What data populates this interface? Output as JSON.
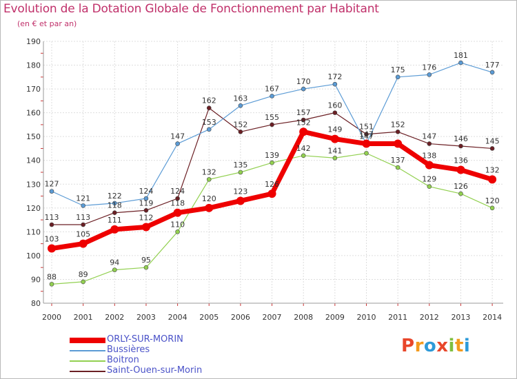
{
  "title": "Evolution de la Dotation Globale de Fonctionnement par Habitant",
  "subtitle": "(en € et par an)",
  "logo": {
    "text": "Proxiti",
    "letters": [
      {
        "ch": "P",
        "color": "#e8462a"
      },
      {
        "ch": "r",
        "color": "#f39a1c"
      },
      {
        "ch": "o",
        "color": "#2e9ad8"
      },
      {
        "ch": "x",
        "color": "#e8462a"
      },
      {
        "ch": "i",
        "color": "#7fbf3f"
      },
      {
        "ch": "t",
        "color": "#f39a1c"
      },
      {
        "ch": "i",
        "color": "#2e9ad8"
      }
    ]
  },
  "chart_data": {
    "type": "line",
    "title": "Evolution de la Dotation Globale de Fonctionnement par Habitant",
    "subtitle": "(en € et par an)",
    "xlabel": "",
    "ylabel": "",
    "x": [
      "2000",
      "2001",
      "2002",
      "2003",
      "2004",
      "2005",
      "2006",
      "2007",
      "2008",
      "2009",
      "2010",
      "2011",
      "2012",
      "2013",
      "2014"
    ],
    "ylim": [
      80,
      190
    ],
    "yticks": [
      "80",
      "90",
      "100",
      "110",
      "120",
      "130",
      "140",
      "150",
      "160",
      "170",
      "180",
      "190"
    ],
    "grid": true,
    "legend_position": "bottom-left",
    "series": [
      {
        "name": "ORLY-SUR-MORIN",
        "color": "#ee0000",
        "values": [
          103,
          105,
          111,
          112,
          118,
          120,
          123,
          126,
          152,
          149,
          147,
          147,
          138,
          136,
          132
        ],
        "labels": [
          "103",
          "105",
          "111",
          "112",
          "118",
          "120",
          "123",
          "126",
          "152",
          "149",
          "147",
          "",
          "138",
          "136",
          "132"
        ]
      },
      {
        "name": "Bussières",
        "color": "#5b9bd5",
        "values": [
          127,
          121,
          122,
          124,
          147,
          153,
          163,
          167,
          170,
          172,
          147,
          175,
          176,
          181,
          177
        ],
        "labels": [
          "127",
          "121",
          "122",
          "124",
          "147",
          "153",
          "163",
          "167",
          "170",
          "172",
          "147",
          "175",
          "176",
          "181",
          "177"
        ]
      },
      {
        "name": "Boitron",
        "color": "#92d050",
        "values": [
          88,
          89,
          94,
          95,
          110,
          132,
          135,
          139,
          142,
          141,
          143,
          137,
          129,
          126,
          120
        ],
        "labels": [
          "88",
          "89",
          "94",
          "95",
          "110",
          "132",
          "135",
          "139",
          "142",
          "141",
          "",
          "137",
          "129",
          "126",
          "120"
        ]
      },
      {
        "name": "Saint-Ouen-sur-Morin",
        "color": "#6b1f24",
        "values": [
          113,
          113,
          118,
          119,
          124,
          162,
          152,
          155,
          157,
          160,
          151,
          152,
          147,
          146,
          145
        ],
        "labels": [
          "113",
          "113",
          "118",
          "119",
          "124",
          "162",
          "152",
          "155",
          "157",
          "160",
          "151",
          "152",
          "147",
          "146",
          "145"
        ]
      }
    ]
  }
}
